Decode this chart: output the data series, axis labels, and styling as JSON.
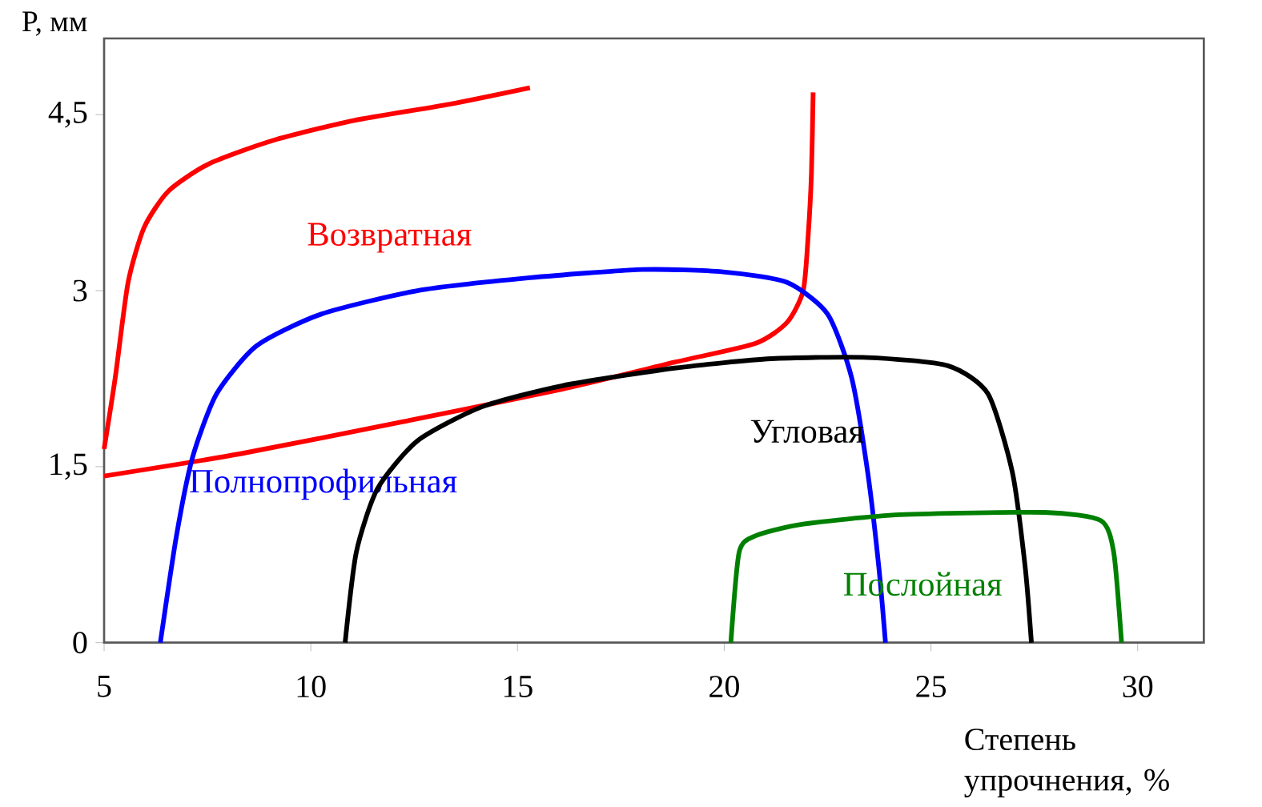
{
  "chart_data": {
    "type": "line",
    "xlabel": "Степень упрочнения, %",
    "ylabel": "P, мм",
    "xlim": [
      5,
      31.6
    ],
    "ylim": [
      0,
      5.15
    ],
    "xticks": [
      5,
      10,
      15,
      20,
      25,
      30
    ],
    "yticks": [
      0,
      {
        "value": 1.5,
        "label": "1,5"
      },
      3,
      {
        "value": 4.5,
        "label": "4,5"
      }
    ],
    "grid": false,
    "legend": false,
    "marker": "none",
    "line_style": "solid",
    "series": [
      {
        "name": "Возвратная",
        "color": "#ff0000",
        "x": [
          5.0,
          5.27,
          5.58,
          5.97,
          6.56,
          7.53,
          9.08,
          11.03,
          13.36,
          15.3
        ],
        "values": [
          1.65,
          2.26,
          3.07,
          3.54,
          3.85,
          4.08,
          4.28,
          4.45,
          4.59,
          4.73
        ]
      },
      {
        "color": "#ff0000",
        "x": [
          5.0,
          8.3,
          12.19,
          16.08,
          18.8,
          20.75,
          21.52,
          21.91,
          22.03,
          22.11,
          22.15
        ],
        "values": [
          1.42,
          1.61,
          1.88,
          2.16,
          2.39,
          2.55,
          2.73,
          3.0,
          3.47,
          4.01,
          4.69
        ]
      },
      {
        "name": "Полнопрофильная",
        "color": "#0000ff",
        "x": [
          6.36,
          6.75,
          7.14,
          7.72,
          8.69,
          10.25,
          12.58,
          15.3,
          18.02,
          19.97,
          21.52,
          22.5,
          23.08,
          23.47,
          23.74,
          23.9
        ],
        "values": [
          0,
          0.91,
          1.58,
          2.12,
          2.53,
          2.8,
          3.0,
          3.11,
          3.18,
          3.16,
          3.07,
          2.8,
          2.26,
          1.45,
          0.64,
          0
        ]
      },
      {
        "name": "Угловая",
        "color": "#000000",
        "x": [
          10.83,
          11.1,
          11.61,
          12.58,
          14.14,
          16.08,
          18.8,
          21.14,
          23.47,
          25.41,
          26.38,
          26.97,
          27.28,
          27.43
        ],
        "values": [
          0,
          0.77,
          1.31,
          1.72,
          2.01,
          2.19,
          2.34,
          2.42,
          2.43,
          2.36,
          2.12,
          1.45,
          0.64,
          0
        ]
      },
      {
        "name": "Послойная",
        "color": "#008000",
        "x": [
          20.16,
          20.36,
          20.75,
          21.91,
          24.25,
          27.75,
          29.11,
          29.42,
          29.61
        ],
        "values": [
          0,
          0.77,
          0.91,
          1.01,
          1.09,
          1.11,
          1.04,
          0.77,
          0
        ]
      }
    ]
  }
}
